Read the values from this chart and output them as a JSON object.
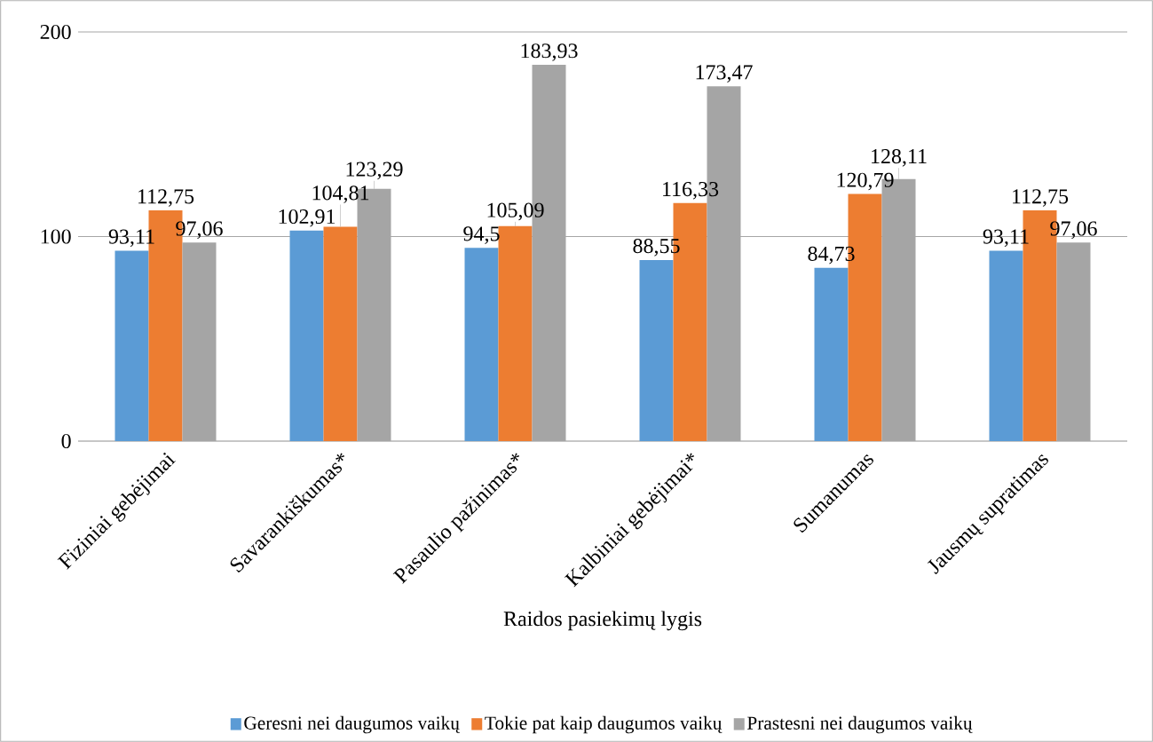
{
  "chart_data": {
    "type": "bar",
    "xlabel": "Raidos pasiekimų lygis",
    "categories": [
      "Fiziniai gebėjimai",
      "Savarankiškumas*",
      "Pasaulio pažinimas*",
      "Kalbiniai gebėjimai*",
      "Sumanumas",
      "Jausmų supratimas"
    ],
    "series": [
      {
        "name": "Geresni nei daugumos vaikų",
        "color": "#5b9bd5",
        "values": [
          93.11,
          102.91,
          94.5,
          88.55,
          84.73,
          93.11
        ],
        "value_labels": [
          "93,11",
          "102,91",
          "94,5",
          "88,55",
          "84,73",
          "93,11"
        ]
      },
      {
        "name": "Tokie pat kaip daugumos vaikų",
        "color": "#ed7d31",
        "values": [
          112.75,
          104.81,
          105.09,
          116.33,
          120.79,
          112.75
        ],
        "value_labels": [
          "112,75",
          "104,81",
          "105,09",
          "116,33",
          "120,79",
          "112,75"
        ]
      },
      {
        "name": "Prastesni nei daugumos vaikų",
        "color": "#a5a5a5",
        "values": [
          97.06,
          123.29,
          183.93,
          173.47,
          128.11,
          97.06
        ],
        "value_labels": [
          "97,06",
          "123,29",
          "183,93",
          "173,47",
          "128,11",
          "97,06"
        ]
      }
    ],
    "ylim": [
      0,
      200
    ],
    "yticks": [
      0,
      100,
      200
    ],
    "grid": "y",
    "legend": "bottom"
  }
}
